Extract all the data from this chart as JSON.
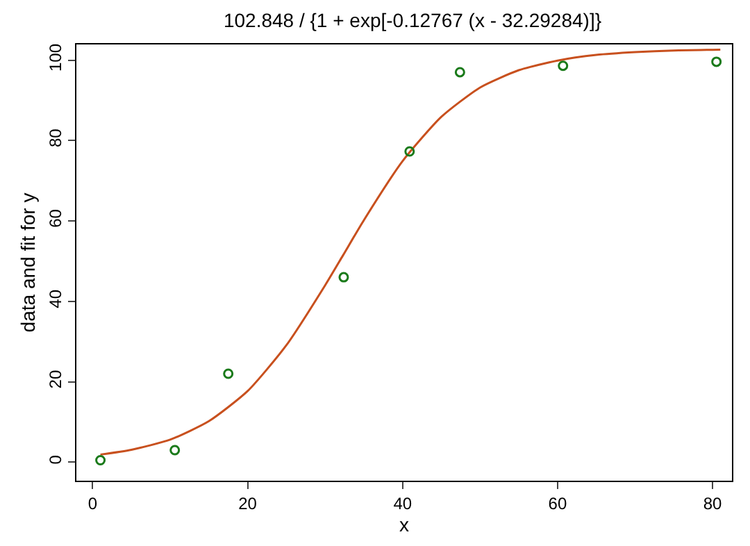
{
  "chart_data": {
    "type": "scatter",
    "title": "102.848 / {1 + exp[-0.12767 (x - 32.29284)]}",
    "xlabel": "x",
    "ylabel": "data and fit for y",
    "xlim": [
      -2.1,
      82.5
    ],
    "ylim": [
      -4.6,
      103.9
    ],
    "xticks": [
      0,
      20,
      40,
      60,
      80
    ],
    "yticks": [
      0,
      20,
      40,
      60,
      80,
      100
    ],
    "grid": false,
    "legend": false,
    "series": [
      {
        "marker": "circle",
        "color": "#1a7a1a",
        "x": [
          1,
          10.6,
          17.5,
          32.4,
          40.9,
          47.4,
          60.7,
          80.5
        ],
        "values": [
          0.5,
          3,
          22,
          46,
          77.3,
          97,
          98.6,
          99.6
        ]
      },
      {
        "type": "line",
        "marker": "none",
        "line_style": "solid",
        "color": "#c8501e",
        "x": [
          1,
          5,
          10,
          15,
          20,
          25,
          30,
          32.29,
          35,
          40,
          45,
          50,
          55,
          60,
          65,
          70,
          75,
          81
        ],
        "values": [
          1.9,
          3.1,
          5.6,
          10.2,
          17.7,
          29.1,
          44,
          51.4,
          60.2,
          74.9,
          85.9,
          93.2,
          97.5,
          99.9,
          101.3,
          102,
          102.4,
          102.6
        ]
      }
    ]
  }
}
